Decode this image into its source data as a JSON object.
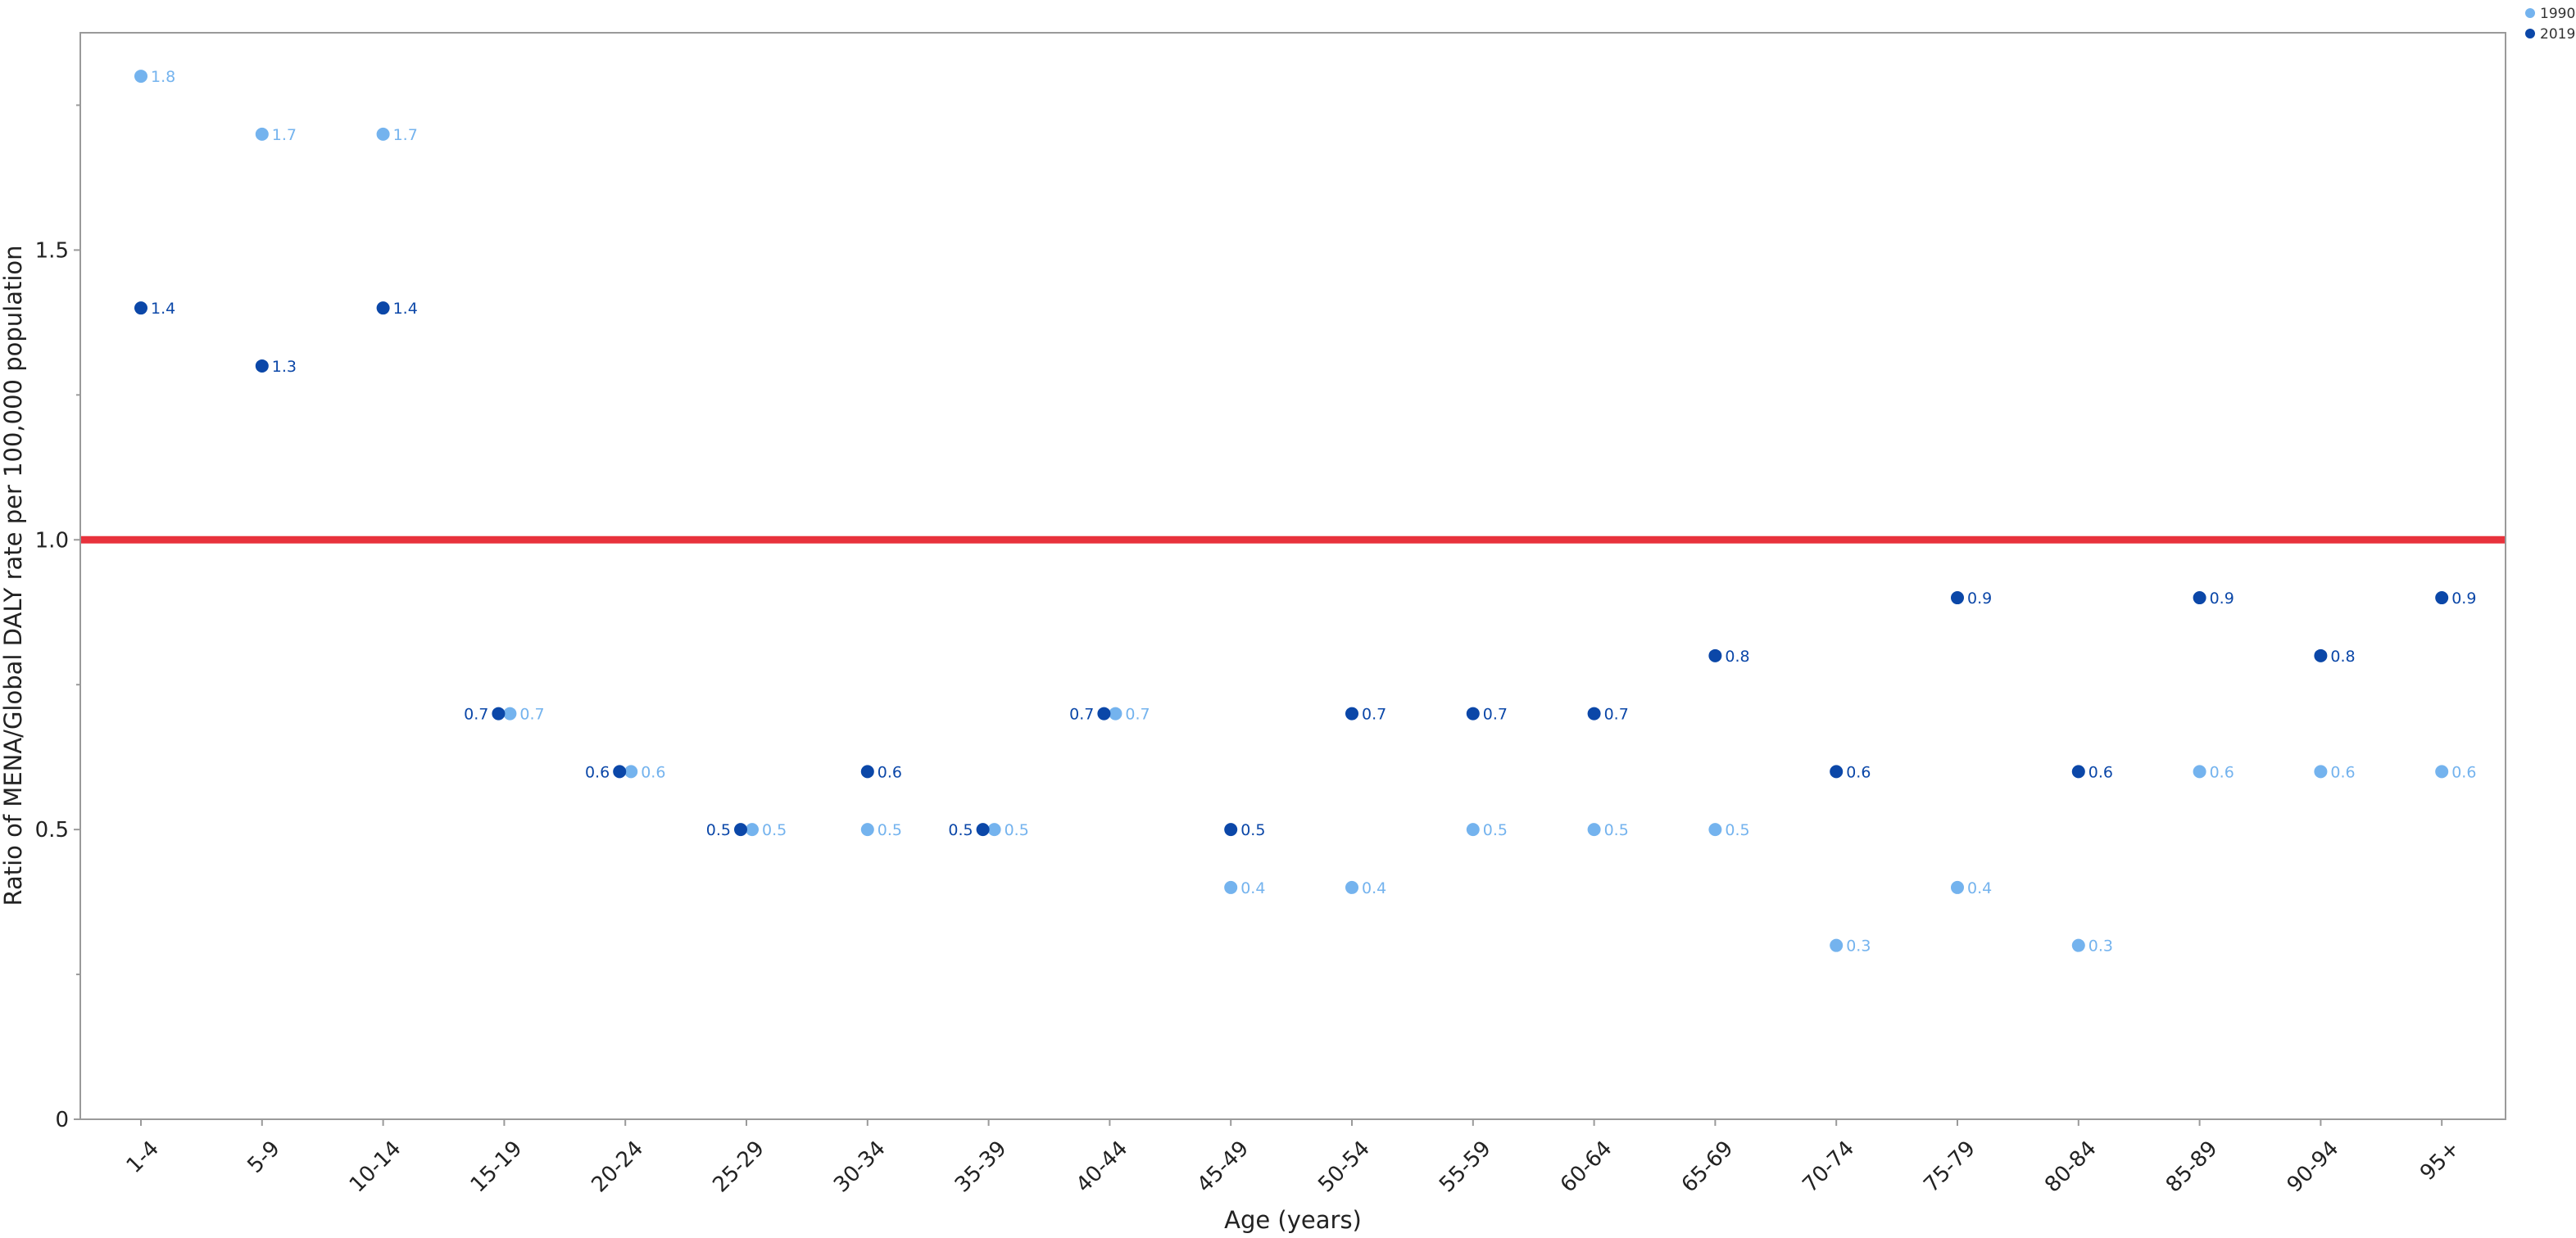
{
  "chart_data": {
    "type": "scatter",
    "title": "",
    "xlabel": "Age (years)",
    "ylabel": "Ratio of MENA/Global DALY rate per 100,000 population",
    "categories": [
      "1-4",
      "5-9",
      "10-14",
      "15-19",
      "20-24",
      "25-29",
      "30-34",
      "35-39",
      "40-44",
      "45-49",
      "50-54",
      "55-59",
      "60-64",
      "65-69",
      "70-74",
      "75-79",
      "80-84",
      "85-89",
      "90-94",
      "95+"
    ],
    "ylim": [
      0,
      1.875
    ],
    "yticks": [
      0,
      0.5,
      1.0,
      1.5
    ],
    "ytick_labels": [
      "0",
      "0.5",
      "1.0",
      "1.5"
    ],
    "reference_line": {
      "value": 1.0,
      "color": "#e8323c"
    },
    "grid": false,
    "legend_position": "top-right",
    "series": [
      {
        "name": "1990",
        "color": "#74b3ee",
        "values": [
          1.8,
          1.7,
          1.7,
          0.7,
          0.6,
          0.5,
          0.5,
          0.5,
          0.7,
          0.4,
          0.4,
          0.5,
          0.5,
          0.5,
          0.3,
          0.4,
          0.3,
          0.6,
          0.6,
          0.6
        ]
      },
      {
        "name": "2019",
        "color": "#0b47a8",
        "values": [
          1.4,
          1.3,
          1.4,
          0.7,
          0.6,
          0.5,
          0.6,
          0.5,
          0.7,
          0.5,
          0.7,
          0.7,
          0.7,
          0.8,
          0.6,
          0.9,
          0.6,
          0.9,
          0.8,
          0.9
        ]
      }
    ]
  }
}
